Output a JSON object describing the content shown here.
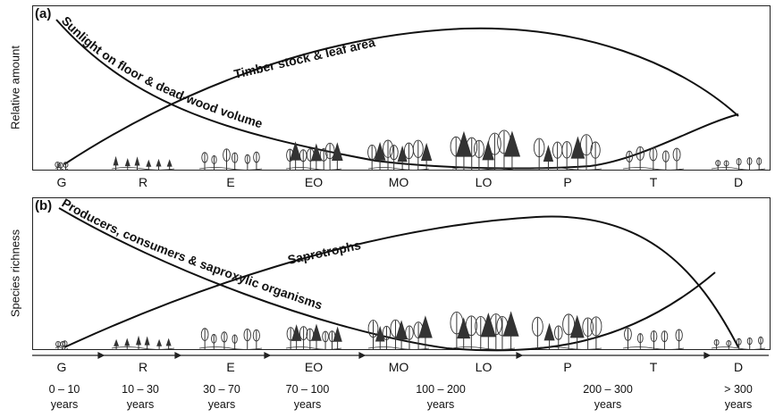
{
  "panels": {
    "a": {
      "label": "(a)",
      "ylabel": "Relative amount"
    },
    "b": {
      "label": "(b)",
      "ylabel": "Species richness"
    }
  },
  "curves": {
    "timber": "Timber stock & leaf area",
    "sunlight": "Sunlight on floor & dead-wood volume",
    "saprotrophs": "Saprotrophs",
    "producers": "Producers, consumers & saproxylic organisms"
  },
  "stages": [
    "G",
    "R",
    "E",
    "EO",
    "MO",
    "LO",
    "P",
    "T",
    "D"
  ],
  "age_ranges": [
    {
      "range": "0 – 10",
      "unit": "years"
    },
    {
      "range": "10 – 30",
      "unit": "years"
    },
    {
      "range": "30 – 70",
      "unit": "years"
    },
    {
      "range": "70 – 100",
      "unit": "years"
    },
    {
      "range": "100 – 200",
      "unit": "years"
    },
    {
      "range": "200 – 300",
      "unit": "years"
    },
    {
      "range": "> 300",
      "unit": "years"
    }
  ],
  "colors": {
    "line": "#111111",
    "tree": "#333333"
  }
}
